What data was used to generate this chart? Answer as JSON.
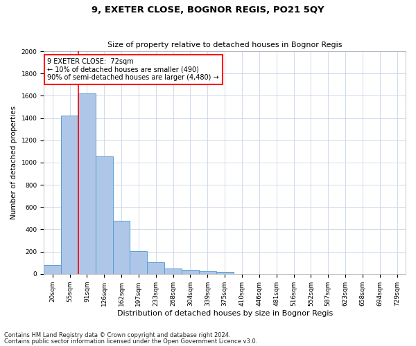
{
  "title1": "9, EXETER CLOSE, BOGNOR REGIS, PO21 5QY",
  "title2": "Size of property relative to detached houses in Bognor Regis",
  "xlabel": "Distribution of detached houses by size in Bognor Regis",
  "ylabel": "Number of detached properties",
  "categories": [
    "20sqm",
    "55sqm",
    "91sqm",
    "126sqm",
    "162sqm",
    "197sqm",
    "233sqm",
    "268sqm",
    "304sqm",
    "339sqm",
    "375sqm",
    "410sqm",
    "446sqm",
    "481sqm",
    "516sqm",
    "552sqm",
    "587sqm",
    "623sqm",
    "658sqm",
    "694sqm",
    "729sqm"
  ],
  "values": [
    80,
    1420,
    1620,
    1055,
    480,
    205,
    105,
    50,
    35,
    22,
    18,
    0,
    0,
    0,
    0,
    0,
    0,
    0,
    0,
    0,
    0
  ],
  "bar_color": "#aec6e8",
  "bar_edge_color": "#5a9fd4",
  "red_line_x": 1.5,
  "ylim": [
    0,
    2000
  ],
  "yticks": [
    0,
    200,
    400,
    600,
    800,
    1000,
    1200,
    1400,
    1600,
    1800,
    2000
  ],
  "annotation_title": "9 EXETER CLOSE:  72sqm",
  "annotation_line1": "← 10% of detached houses are smaller (490)",
  "annotation_line2": "90% of semi-detached houses are larger (4,480) →",
  "footnote1": "Contains HM Land Registry data © Crown copyright and database right 2024.",
  "footnote2": "Contains public sector information licensed under the Open Government Licence v3.0.",
  "title1_fontsize": 9.5,
  "title2_fontsize": 8,
  "xlabel_fontsize": 8,
  "ylabel_fontsize": 7.5,
  "tick_fontsize": 6.5,
  "annot_fontsize": 7,
  "footnote_fontsize": 6
}
